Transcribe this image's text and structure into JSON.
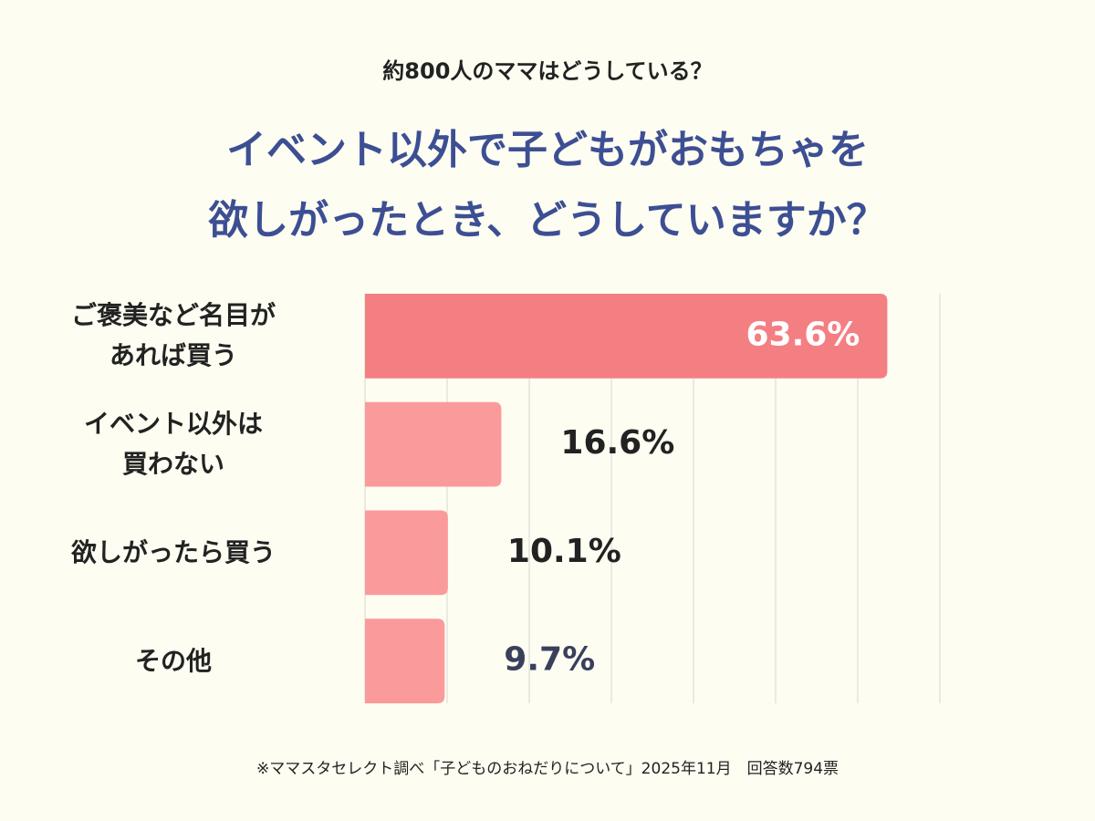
{
  "chart_data": {
    "type": "bar",
    "orientation": "horizontal",
    "subtitle": "約800人のママはどうしている？",
    "title": "イベント以外で子どもがおもちゃを\n欲しがったとき、どうしていますか？",
    "categories": [
      "ご褒美など名目が\nあれば買う",
      "イベント以外は\n買わない",
      "欲しがったら買う",
      "その他"
    ],
    "values": [
      63.6,
      16.6,
      10.1,
      9.7
    ],
    "value_labels": [
      "63.6%",
      "16.6%",
      "10.1%",
      "9.7%"
    ],
    "colors": [
      "#f47f83",
      "#fb9a9b",
      "#fb9a9b",
      "#fb9a9b"
    ],
    "label_colors": [
      "#ffffff",
      "#222222",
      "#222222",
      "#3a3f5c"
    ],
    "xlim": [
      0,
      70
    ],
    "xticks": [
      0,
      10,
      20,
      30,
      40,
      50,
      60,
      70
    ],
    "grid": true,
    "footnote": "※ママスタセレクト調べ「子どものおねだりについて」2025年11月　回答数794票"
  }
}
